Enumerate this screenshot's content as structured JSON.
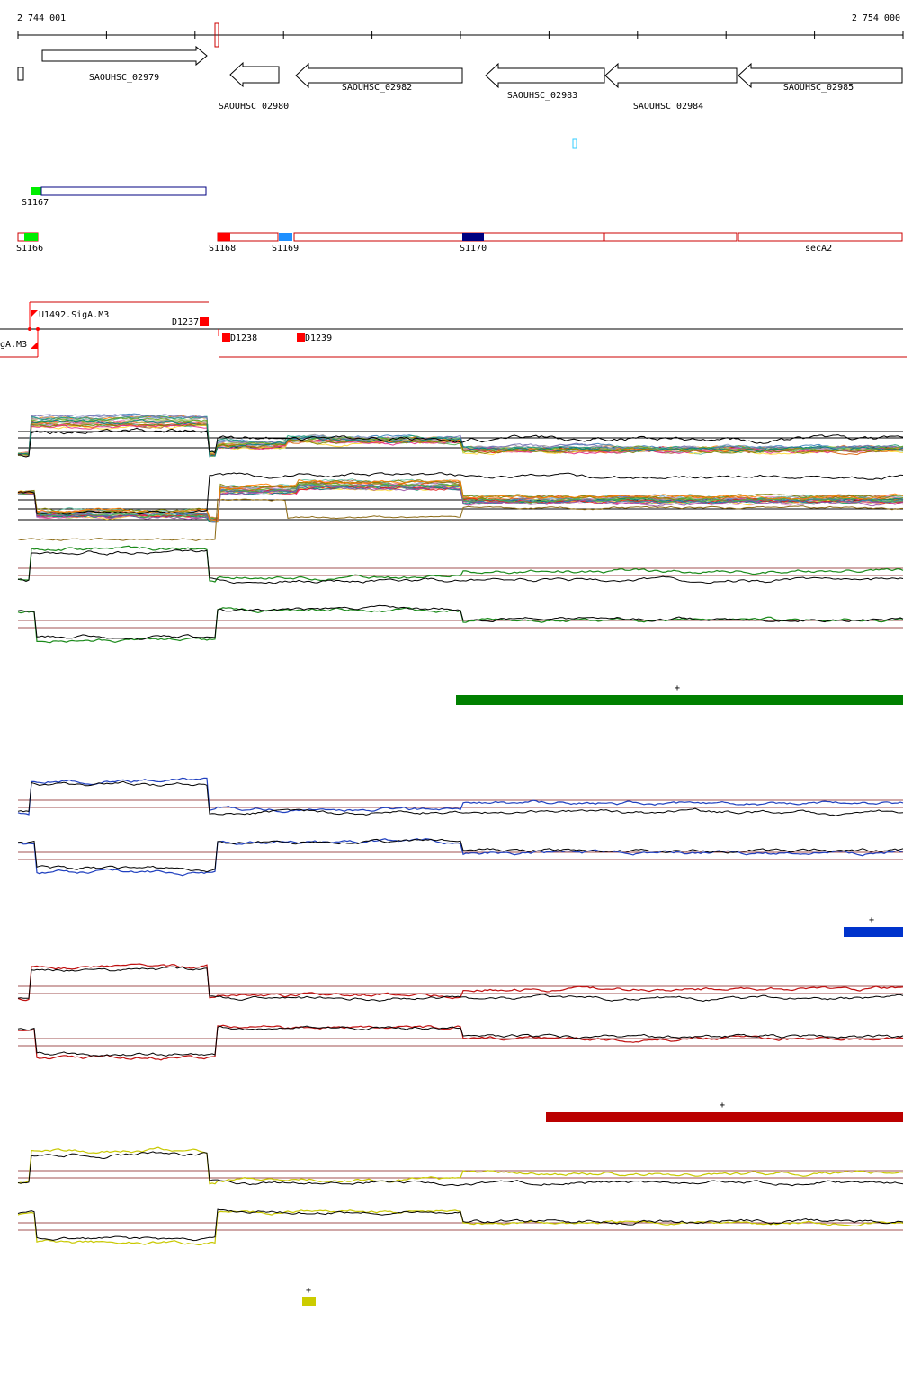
{
  "ruler": {
    "start_label": "2 744 001",
    "end_label": "2 754 000"
  },
  "genes": [
    {
      "label": "SAOUHSC_02979",
      "strand": "+"
    },
    {
      "label": "SAOUHSC_02980",
      "strand": "-"
    },
    {
      "label": "SAOUHSC_02982",
      "strand": "-"
    },
    {
      "label": "SAOUHSC_02983",
      "strand": "-"
    },
    {
      "label": "SAOUHSC_02984",
      "strand": "-"
    },
    {
      "label": "SAOUHSC_02985",
      "strand": "-"
    }
  ],
  "segments_top": [
    {
      "label": "S1167",
      "color": "#00ee00"
    }
  ],
  "segments_main": [
    {
      "label": "S1166",
      "color": "#00ee00"
    },
    {
      "label": "S1168",
      "color": "#ff0000"
    },
    {
      "label": "S1169",
      "color": "#1e90ff"
    },
    {
      "label": "S1170",
      "color": "#000080"
    },
    {
      "label": "secA2",
      "color": "#cc0000"
    }
  ],
  "promoters": [
    {
      "label": "U1492.SigA.M3",
      "color": "#ff0000"
    },
    {
      "label": "gA.M3",
      "color": "#ff0000"
    },
    {
      "label": "D1237",
      "color": "#ff0000"
    },
    {
      "label": "D1238",
      "color": "#ff0000"
    },
    {
      "label": "D1239",
      "color": "#ff0000"
    }
  ],
  "condition_tracks": [
    {
      "name": "green",
      "color": "#1a8a1a",
      "bar_color": "#008000",
      "marker": "+"
    },
    {
      "name": "blue",
      "color": "#1f3fbf",
      "bar_color": "#0033cc",
      "marker": "+"
    },
    {
      "name": "red",
      "color": "#c01010",
      "bar_color": "#bb0000",
      "marker": "+"
    },
    {
      "name": "yellow",
      "color": "#c8c800",
      "bar_color": "#cccc00",
      "marker": "+"
    }
  ]
}
